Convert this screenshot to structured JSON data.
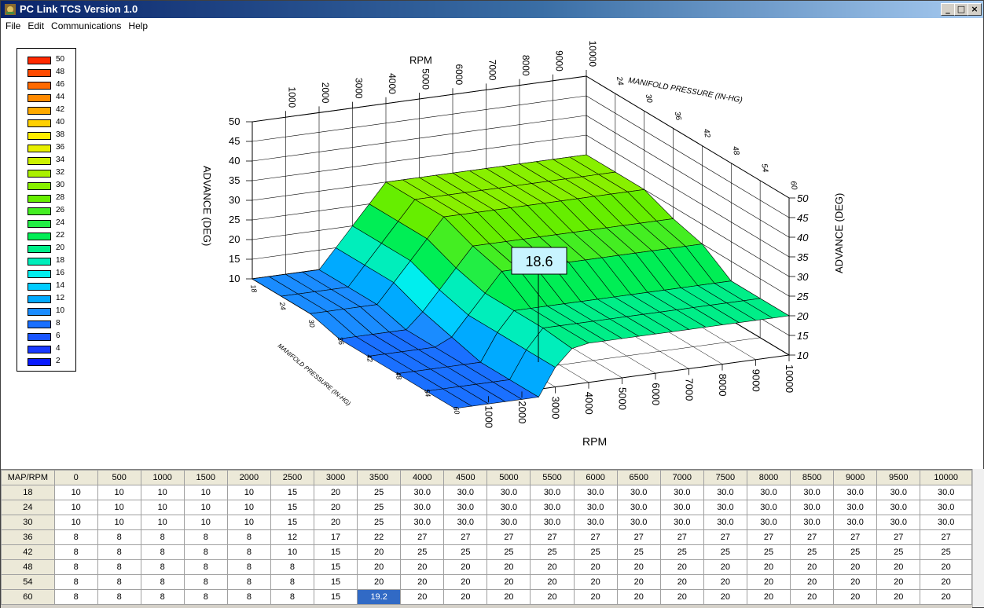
{
  "window": {
    "title": "PC Link TCS Version 1.0",
    "controls": [
      "_",
      "□",
      "×"
    ]
  },
  "menu": [
    "File",
    "Edit",
    "Communications",
    "Help"
  ],
  "legend": {
    "entries": [
      {
        "label": "50",
        "color": "#ff2a00"
      },
      {
        "label": "48",
        "color": "#ff4a00"
      },
      {
        "label": "46",
        "color": "#ff6a00"
      },
      {
        "label": "44",
        "color": "#ff8a00"
      },
      {
        "label": "42",
        "color": "#ffaa00"
      },
      {
        "label": "40",
        "color": "#ffd000"
      },
      {
        "label": "38",
        "color": "#ffee00"
      },
      {
        "label": "36",
        "color": "#e8f000"
      },
      {
        "label": "34",
        "color": "#ccf000"
      },
      {
        "label": "32",
        "color": "#aaf000"
      },
      {
        "label": "30",
        "color": "#88f000"
      },
      {
        "label": "28",
        "color": "#66ee00"
      },
      {
        "label": "26",
        "color": "#44ee22"
      },
      {
        "label": "24",
        "color": "#22ee44"
      },
      {
        "label": "22",
        "color": "#00ee55"
      },
      {
        "label": "20",
        "color": "#00ee88"
      },
      {
        "label": "18",
        "color": "#00eebb"
      },
      {
        "label": "16",
        "color": "#00eeee"
      },
      {
        "label": "14",
        "color": "#00ccff"
      },
      {
        "label": "12",
        "color": "#00aaff"
      },
      {
        "label": "10",
        "color": "#1a8cff"
      },
      {
        "label": "8",
        "color": "#1a70ff"
      },
      {
        "label": "6",
        "color": "#1a55ff"
      },
      {
        "label": "4",
        "color": "#1a3aff"
      },
      {
        "label": "2",
        "color": "#0a1aff"
      }
    ]
  },
  "plot": {
    "rpm_title_top": "RPM",
    "rpm_title_bottom": "RPM",
    "map_title_top": "MANIFOLD PRESSURE (IN-HG)",
    "map_title_left": "MANIFOLD PRESSURE (IN-HG)",
    "advance_title_left": "ADVANCE (DEG)",
    "advance_title_right": "ADVANCE (DEG)",
    "rpm_ticks": [
      "1000",
      "2000",
      "3000",
      "4000",
      "5000",
      "6000",
      "7000",
      "8000",
      "9000",
      "10000"
    ],
    "map_ticks": [
      "24",
      "30",
      "36",
      "42",
      "48",
      "54",
      "60"
    ],
    "advance_ticks": [
      "10",
      "15",
      "20",
      "25",
      "30",
      "35",
      "40",
      "45",
      "50"
    ],
    "map_ticks_left": [
      "18",
      "24",
      "30",
      "36",
      "42",
      "48",
      "54",
      "60"
    ],
    "advance_ticks_right": [
      "10",
      "15",
      "20",
      "25",
      "30",
      "35",
      "40",
      "45",
      "50"
    ],
    "hover_value": "18.6",
    "colors": {
      "low": "#1a70ff",
      "mid": "#00eeee",
      "high": "#33ee00"
    }
  },
  "table": {
    "corner": "MAP/RPM",
    "columns": [
      "0",
      "500",
      "1000",
      "1500",
      "2000",
      "2500",
      "3000",
      "3500",
      "4000",
      "4500",
      "5000",
      "5500",
      "6000",
      "6500",
      "7000",
      "7500",
      "8000",
      "8500",
      "9000",
      "9500",
      "10000"
    ],
    "rows": [
      {
        "map": "18",
        "values": [
          "10",
          "10",
          "10",
          "10",
          "10",
          "15",
          "20",
          "25",
          "30.0",
          "30.0",
          "30.0",
          "30.0",
          "30.0",
          "30.0",
          "30.0",
          "30.0",
          "30.0",
          "30.0",
          "30.0",
          "30.0",
          "30.0"
        ]
      },
      {
        "map": "24",
        "values": [
          "10",
          "10",
          "10",
          "10",
          "10",
          "15",
          "20",
          "25",
          "30.0",
          "30.0",
          "30.0",
          "30.0",
          "30.0",
          "30.0",
          "30.0",
          "30.0",
          "30.0",
          "30.0",
          "30.0",
          "30.0",
          "30.0"
        ]
      },
      {
        "map": "30",
        "values": [
          "10",
          "10",
          "10",
          "10",
          "10",
          "15",
          "20",
          "25",
          "30.0",
          "30.0",
          "30.0",
          "30.0",
          "30.0",
          "30.0",
          "30.0",
          "30.0",
          "30.0",
          "30.0",
          "30.0",
          "30.0",
          "30.0"
        ]
      },
      {
        "map": "36",
        "values": [
          "8",
          "8",
          "8",
          "8",
          "8",
          "12",
          "17",
          "22",
          "27",
          "27",
          "27",
          "27",
          "27",
          "27",
          "27",
          "27",
          "27",
          "27",
          "27",
          "27",
          "27"
        ]
      },
      {
        "map": "42",
        "values": [
          "8",
          "8",
          "8",
          "8",
          "8",
          "10",
          "15",
          "20",
          "25",
          "25",
          "25",
          "25",
          "25",
          "25",
          "25",
          "25",
          "25",
          "25",
          "25",
          "25",
          "25"
        ]
      },
      {
        "map": "48",
        "values": [
          "8",
          "8",
          "8",
          "8",
          "8",
          "8",
          "15",
          "20",
          "20",
          "20",
          "20",
          "20",
          "20",
          "20",
          "20",
          "20",
          "20",
          "20",
          "20",
          "20",
          "20"
        ]
      },
      {
        "map": "54",
        "values": [
          "8",
          "8",
          "8",
          "8",
          "8",
          "8",
          "15",
          "20",
          "20",
          "20",
          "20",
          "20",
          "20",
          "20",
          "20",
          "20",
          "20",
          "20",
          "20",
          "20",
          "20"
        ]
      },
      {
        "map": "60",
        "values": [
          "8",
          "8",
          "8",
          "8",
          "8",
          "8",
          "15",
          "19.2",
          "20",
          "20",
          "20",
          "20",
          "20",
          "20",
          "20",
          "20",
          "20",
          "20",
          "20",
          "20",
          "20"
        ]
      }
    ],
    "selected": {
      "row": 7,
      "col": 7
    }
  }
}
